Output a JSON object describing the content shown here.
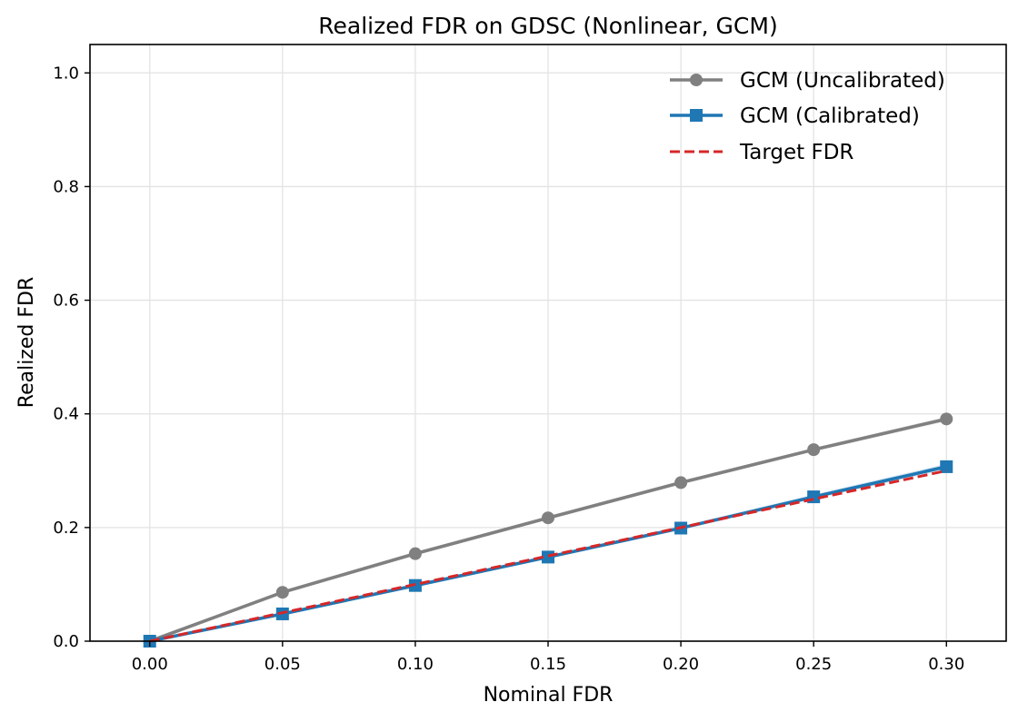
{
  "chart_data": {
    "type": "line",
    "title": "Realized FDR on GDSC (Nonlinear, GCM)",
    "xlabel": "Nominal FDR",
    "ylabel": "Realized FDR",
    "xlim": [
      -0.0225,
      0.3225
    ],
    "ylim": [
      0.0,
      1.05
    ],
    "x": [
      0.0,
      0.05,
      0.1,
      0.15,
      0.2,
      0.25,
      0.3
    ],
    "x_tick_labels": [
      "0.00",
      "0.05",
      "0.10",
      "0.15",
      "0.20",
      "0.25",
      "0.30"
    ],
    "y_ticks": [
      0.0,
      0.2,
      0.4,
      0.6,
      0.8,
      1.0
    ],
    "y_tick_labels": [
      "0.0",
      "0.2",
      "0.4",
      "0.6",
      "0.8",
      "1.0"
    ],
    "grid": true,
    "legend_position": "top-right",
    "series": [
      {
        "name": "GCM (Uncalibrated)",
        "color": "#808080",
        "marker": "circle",
        "line_style": "solid",
        "values": [
          0.0,
          0.086,
          0.154,
          0.217,
          0.279,
          0.337,
          0.391
        ],
        "band_lower": [
          0.0,
          0.083,
          0.151,
          0.214,
          0.276,
          0.334,
          0.387
        ],
        "band_upper": [
          0.0,
          0.089,
          0.157,
          0.22,
          0.282,
          0.34,
          0.395
        ]
      },
      {
        "name": "GCM (Calibrated)",
        "color": "#1f77b4",
        "marker": "square",
        "line_style": "solid",
        "values": [
          0.0,
          0.048,
          0.098,
          0.148,
          0.199,
          0.254,
          0.307
        ],
        "band_lower": [
          0.0,
          0.045,
          0.095,
          0.145,
          0.196,
          0.25,
          0.302
        ],
        "band_upper": [
          0.0,
          0.051,
          0.101,
          0.151,
          0.202,
          0.258,
          0.312
        ]
      },
      {
        "name": "Target FDR",
        "color": "#d62728",
        "marker": "none",
        "line_style": "dashed",
        "values": [
          0.0,
          0.05,
          0.1,
          0.15,
          0.2,
          0.25,
          0.3
        ]
      }
    ]
  }
}
